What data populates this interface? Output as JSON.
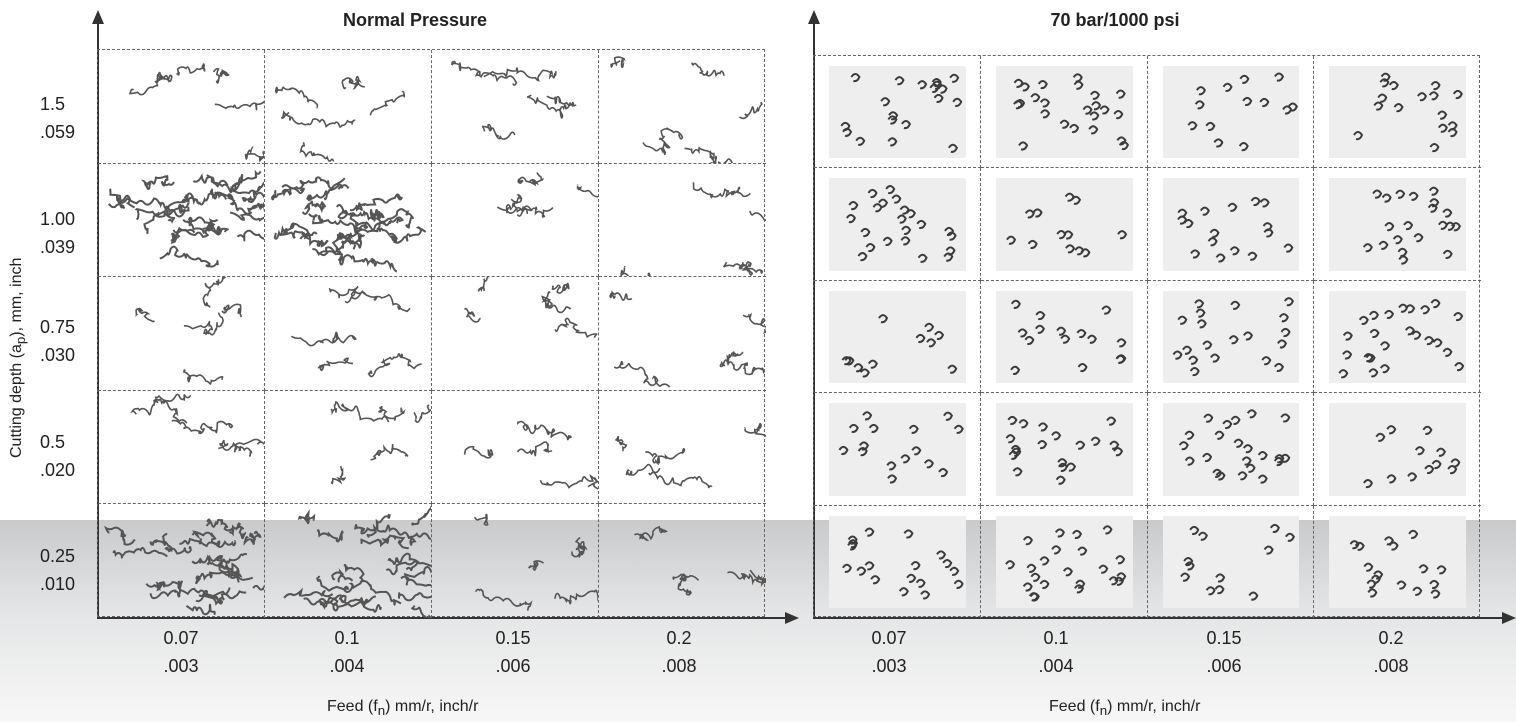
{
  "panels": [
    {
      "title": "Normal Pressure"
    },
    {
      "title": "70 bar/1000 psi"
    }
  ],
  "y_axis_title": {
    "main": "Cutting depth (a",
    "sub": "p",
    "rest": "), mm, inch"
  },
  "x_axis_title": {
    "main": "Feed (f",
    "sub": "n",
    "rest": ") mm/r, inch/r"
  },
  "rows": [
    {
      "mm": "1.5",
      "inch": ".059"
    },
    {
      "mm": "1.00",
      "inch": ".039"
    },
    {
      "mm": "0.75",
      "inch": ".030"
    },
    {
      "mm": "0.5",
      "inch": ".020"
    },
    {
      "mm": "0.25",
      "inch": ".010"
    }
  ],
  "cols": [
    {
      "mm": "0.07",
      "inch": ".003"
    },
    {
      "mm": "0.1",
      "inch": ".004"
    },
    {
      "mm": "0.15",
      "inch": ".006"
    },
    {
      "mm": "0.2",
      "inch": ".008"
    }
  ]
}
